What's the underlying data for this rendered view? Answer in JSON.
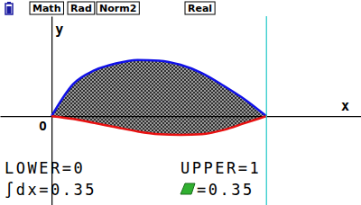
{
  "status_bar": [
    "Math",
    "Rad",
    "Norm2",
    "Real"
  ],
  "chart_data": {
    "type": "area",
    "x_label": "x",
    "y_label": "y",
    "origin_label": "O",
    "x": [
      0,
      0.1,
      0.2,
      0.3,
      0.4,
      0.5,
      0.6,
      0.7,
      0.8,
      0.9,
      1
    ],
    "series": [
      {
        "color": "#1010e8",
        "values": [
          0,
          0.23,
          0.33,
          0.38,
          0.405,
          0.4,
          0.37,
          0.31,
          0.22,
          0.12,
          0
        ]
      },
      {
        "color": "#e81010",
        "values": [
          0,
          -0.02,
          -0.05,
          -0.08,
          -0.11,
          -0.13,
          -0.135,
          -0.13,
          -0.1,
          -0.05,
          0
        ]
      }
    ],
    "xlim": [
      -0.24,
      1.44
    ],
    "ylim": [
      -0.64,
      0.72
    ],
    "tick_labels": false,
    "lower_label": "LOWER=",
    "lower": 0,
    "upper_label": "UPPER=",
    "upper": 1,
    "integral_label": "∫dx=",
    "integral": 0.35,
    "area_label": "=",
    "area": 0.35
  }
}
